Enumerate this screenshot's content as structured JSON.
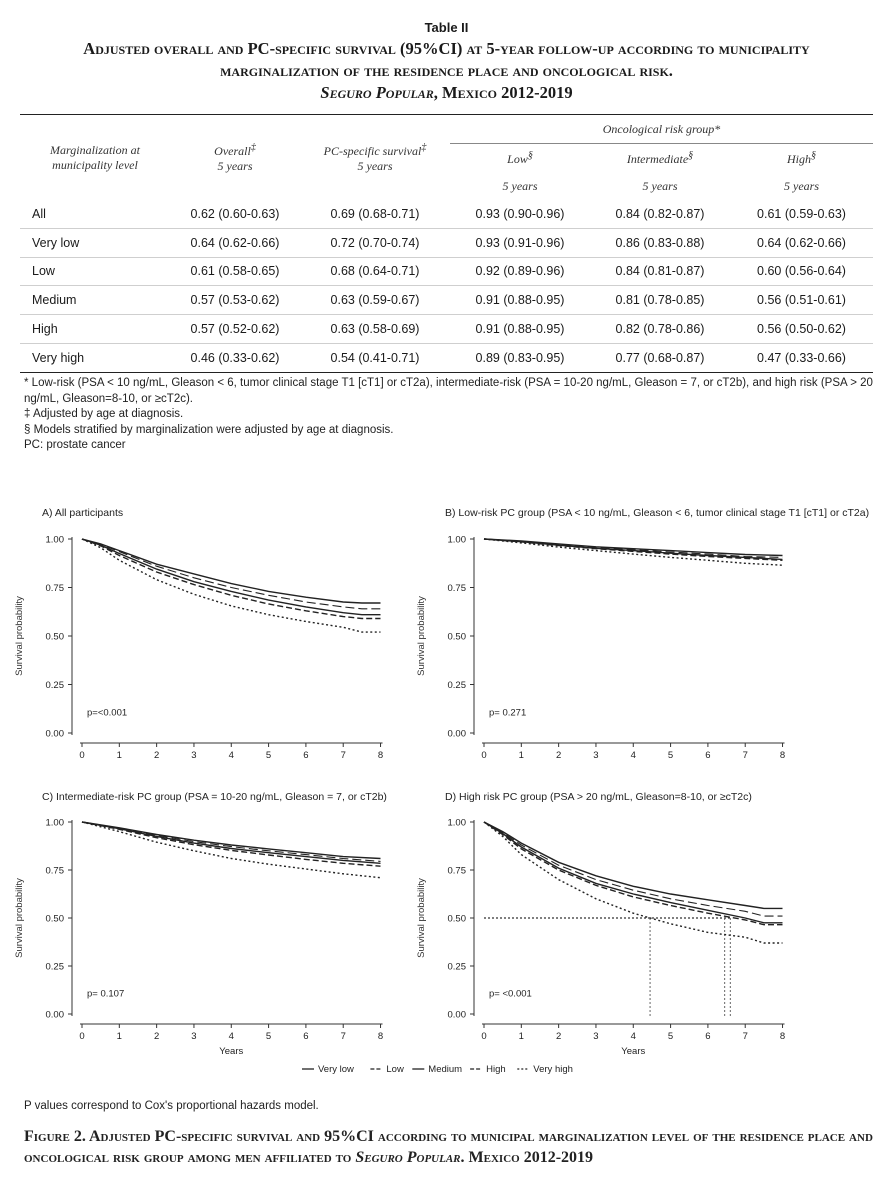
{
  "table": {
    "label": "Table II",
    "title_a": "Adjusted overall and PC-specific survival (95%CI) at 5-year follow-up according to municipality marginalization of the residence place and oncological risk.",
    "title_b": "Seguro Popular",
    "title_c": ", Mexico 2012-2019",
    "col_group": "Oncological risk group*",
    "h_marg_1": "Marginalization at",
    "h_marg_2": "municipality level",
    "h_overall": "Overall",
    "h_overall_sup": "‡",
    "h_pc": "PC-specific survival",
    "h_pc_sup": "‡",
    "h_years": "5 years",
    "h_low": "Low",
    "h_int": "Intermediate",
    "h_high": "High",
    "h_risk_sup": "§",
    "rows": [
      {
        "label": "All",
        "overall": "0.62 (0.60-0.63)",
        "pc": "0.69 (0.68-0.71)",
        "low": "0.93 (0.90-0.96)",
        "int": "0.84 (0.82-0.87)",
        "high": "0.61 (0.59-0.63)"
      },
      {
        "label": "Very low",
        "overall": "0.64 (0.62-0.66)",
        "pc": "0.72 (0.70-0.74)",
        "low": "0.93 (0.91-0.96)",
        "int": "0.86 (0.83-0.88)",
        "high": "0.64 (0.62-0.66)"
      },
      {
        "label": "Low",
        "overall": "0.61 (0.58-0.65)",
        "pc": "0.68 (0.64-0.71)",
        "low": "0.92 (0.89-0.96)",
        "int": "0.84 (0.81-0.87)",
        "high": "0.60 (0.56-0.64)"
      },
      {
        "label": "Medium",
        "overall": "0.57 (0.53-0.62)",
        "pc": "0.63 (0.59-0.67)",
        "low": "0.91 (0.88-0.95)",
        "int": "0.81 (0.78-0.85)",
        "high": "0.56 (0.51-0.61)"
      },
      {
        "label": "High",
        "overall": "0.57 (0.52-0.62)",
        "pc": "0.63 (0.58-0.69)",
        "low": "0.91 (0.88-0.95)",
        "int": "0.82 (0.78-0.86)",
        "high": "0.56 (0.50-0.62)"
      },
      {
        "label": "Very high",
        "overall": "0.46 (0.33-0.62)",
        "pc": "0.54 (0.41-0.71)",
        "low": "0.89 (0.83-0.95)",
        "int": "0.77 (0.68-0.87)",
        "high": "0.47 (0.33-0.66)"
      }
    ],
    "footnotes": [
      "* Low-risk (PSA < 10 ng/mL, Gleason < 6, tumor clinical stage T1 [cT1] or cT2a), intermediate-risk (PSA = 10-20 ng/mL, Gleason = 7, or cT2b), and high risk (PSA > 20 ng/mL, Gleason=8-10, or ≥cT2c).",
      "‡ Adjusted by age at diagnosis.",
      "§ Models stratified by marginalization were adjusted by age at diagnosis.",
      "PC: prostate cancer"
    ]
  },
  "chart_data": [
    {
      "type": "line",
      "title": "A) All participants",
      "xlabel": "",
      "ylabel": "Survival probability",
      "xlim": [
        0,
        8.2
      ],
      "ylim": [
        0,
        1
      ],
      "xticks": [
        0,
        1,
        2,
        3,
        4,
        5,
        6,
        7,
        8
      ],
      "yticks": [
        "0.00",
        "0.25",
        "0.50",
        "0.75",
        "1.00"
      ],
      "pvalue": "p=<0.001",
      "x": [
        0,
        0.5,
        1,
        2,
        3,
        4,
        5,
        6,
        7,
        7.5,
        8
      ],
      "series": [
        {
          "name": "Very low",
          "style": "solid",
          "values": [
            1,
            0.975,
            0.94,
            0.87,
            0.82,
            0.77,
            0.73,
            0.7,
            0.675,
            0.67,
            0.67
          ]
        },
        {
          "name": "Low",
          "style": "longdash",
          "values": [
            1,
            0.972,
            0.935,
            0.86,
            0.8,
            0.75,
            0.71,
            0.675,
            0.65,
            0.64,
            0.64
          ]
        },
        {
          "name": "Medium",
          "style": "solid",
          "values": [
            1,
            0.968,
            0.925,
            0.845,
            0.78,
            0.73,
            0.685,
            0.65,
            0.62,
            0.61,
            0.61
          ]
        },
        {
          "name": "High",
          "style": "dash",
          "values": [
            1,
            0.965,
            0.915,
            0.83,
            0.765,
            0.71,
            0.665,
            0.63,
            0.6,
            0.59,
            0.59
          ]
        },
        {
          "name": "Very high",
          "style": "dot",
          "values": [
            1,
            0.955,
            0.89,
            0.79,
            0.715,
            0.655,
            0.61,
            0.575,
            0.545,
            0.52,
            0.52
          ]
        }
      ]
    },
    {
      "type": "line",
      "title": "B) Low-risk PC group (PSA < 10 ng/mL, Gleason < 6, tumor clinical stage T1 [cT1] or cT2a)",
      "xlabel": "",
      "ylabel": "Survival probability",
      "xlim": [
        0,
        8.2
      ],
      "ylim": [
        0,
        1
      ],
      "xticks": [
        0,
        1,
        2,
        3,
        4,
        5,
        6,
        7,
        8
      ],
      "yticks": [
        "0.00",
        "0.25",
        "0.50",
        "0.75",
        "1.00"
      ],
      "pvalue": "p= 0.271",
      "x": [
        0,
        1,
        2,
        3,
        4,
        5,
        6,
        7,
        8
      ],
      "series": [
        {
          "name": "Very low",
          "style": "solid",
          "values": [
            1,
            0.99,
            0.975,
            0.96,
            0.95,
            0.94,
            0.93,
            0.92,
            0.915
          ]
        },
        {
          "name": "Low",
          "style": "longdash",
          "values": [
            1,
            0.988,
            0.972,
            0.957,
            0.945,
            0.933,
            0.922,
            0.91,
            0.905
          ]
        },
        {
          "name": "Medium",
          "style": "solid",
          "values": [
            1,
            0.986,
            0.968,
            0.952,
            0.94,
            0.927,
            0.915,
            0.905,
            0.895
          ]
        },
        {
          "name": "High",
          "style": "dash",
          "values": [
            1,
            0.985,
            0.966,
            0.95,
            0.936,
            0.922,
            0.91,
            0.9,
            0.89
          ]
        },
        {
          "name": "Very high",
          "style": "dot",
          "values": [
            1,
            0.98,
            0.958,
            0.94,
            0.922,
            0.905,
            0.89,
            0.875,
            0.865
          ]
        }
      ]
    },
    {
      "type": "line",
      "title": "C) Intermediate-risk PC group (PSA = 10-20 ng/mL, Gleason = 7, or cT2b)",
      "xlabel": "Years",
      "ylabel": "Survival probability",
      "xlim": [
        0,
        8.2
      ],
      "ylim": [
        0,
        1
      ],
      "xticks": [
        0,
        1,
        2,
        3,
        4,
        5,
        6,
        7,
        8
      ],
      "yticks": [
        "0.00",
        "0.25",
        "0.50",
        "0.75",
        "1.00"
      ],
      "pvalue": "p= 0.107",
      "x": [
        0,
        1,
        2,
        3,
        4,
        5,
        6,
        7,
        8
      ],
      "series": [
        {
          "name": "Very low",
          "style": "solid",
          "values": [
            1,
            0.97,
            0.935,
            0.905,
            0.88,
            0.86,
            0.84,
            0.82,
            0.81
          ]
        },
        {
          "name": "Low",
          "style": "longdash",
          "values": [
            1,
            0.968,
            0.93,
            0.898,
            0.872,
            0.85,
            0.83,
            0.81,
            0.795
          ]
        },
        {
          "name": "Medium",
          "style": "solid",
          "values": [
            1,
            0.965,
            0.925,
            0.89,
            0.862,
            0.84,
            0.82,
            0.8,
            0.785
          ]
        },
        {
          "name": "High",
          "style": "dash",
          "values": [
            1,
            0.962,
            0.918,
            0.882,
            0.852,
            0.828,
            0.805,
            0.785,
            0.77
          ]
        },
        {
          "name": "Very high",
          "style": "dot",
          "values": [
            1,
            0.95,
            0.895,
            0.85,
            0.81,
            0.78,
            0.755,
            0.73,
            0.71
          ]
        }
      ]
    },
    {
      "type": "line",
      "title": "D) High risk PC group (PSA > 20 ng/mL, Gleason=8-10, or ≥cT2c)",
      "xlabel": "Years",
      "ylabel": "Survival probability",
      "xlim": [
        0,
        8.2
      ],
      "ylim": [
        0,
        1
      ],
      "xticks": [
        0,
        1,
        2,
        3,
        4,
        5,
        6,
        7,
        8
      ],
      "yticks": [
        "0.00",
        "0.25",
        "0.50",
        "0.75",
        "1.00"
      ],
      "pvalue": "p= <0.001",
      "median_line": 0.5,
      "median_drops": [
        4.45,
        6.45,
        6.6
      ],
      "x": [
        0,
        0.5,
        1,
        2,
        3,
        4,
        5,
        6,
        7,
        7.5,
        8
      ],
      "series": [
        {
          "name": "Very low",
          "style": "solid",
          "values": [
            1,
            0.95,
            0.89,
            0.79,
            0.72,
            0.665,
            0.625,
            0.595,
            0.565,
            0.55,
            0.55
          ]
        },
        {
          "name": "Low",
          "style": "longdash",
          "values": [
            1,
            0.945,
            0.88,
            0.775,
            0.7,
            0.645,
            0.6,
            0.565,
            0.535,
            0.51,
            0.51
          ]
        },
        {
          "name": "Medium",
          "style": "solid",
          "values": [
            1,
            0.94,
            0.87,
            0.76,
            0.68,
            0.625,
            0.58,
            0.54,
            0.5,
            0.475,
            0.475
          ]
        },
        {
          "name": "High",
          "style": "dash",
          "values": [
            1,
            0.935,
            0.86,
            0.75,
            0.67,
            0.61,
            0.565,
            0.525,
            0.49,
            0.465,
            0.465
          ]
        },
        {
          "name": "Very high",
          "style": "dot",
          "values": [
            1,
            0.925,
            0.83,
            0.7,
            0.6,
            0.525,
            0.47,
            0.425,
            0.4,
            0.37,
            0.37
          ]
        }
      ]
    }
  ],
  "legend_items": [
    "Very low",
    "Low",
    "Medium",
    "High",
    "Very high"
  ],
  "p_note": "P values correspond to Cox's proportional hazards model.",
  "figure": {
    "caption_a": "Figure 2. Adjusted PC-specific survival and 95%CI according to municipal marginalization level of the residence place and oncological risk group among men affiliated to ",
    "caption_b": "Seguro Popular",
    "caption_c": ". Mexico 2012-2019"
  }
}
